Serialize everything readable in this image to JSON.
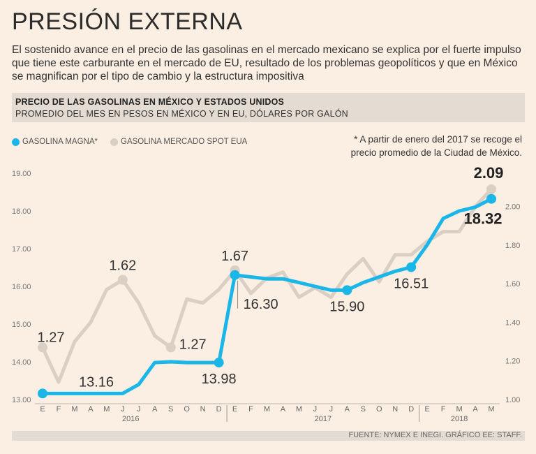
{
  "header": {
    "title": "PRESIÓN EXTERNA",
    "subtitle": "El sostenido avance en el precio de las gasolinas en el mercado mexicano se explica por el fuerte impulso que tiene este carburante en el mercado de EU, resultado de los problemas geopolíticos y que en México se magnifican por el tipo de cambio y la estructura impositiva"
  },
  "band": {
    "title": "PRECIO DE LAS GASOLINAS EN MÉXICO Y ESTADOS UNIDOS",
    "subtitle": "PROMEDIO DEL MES EN PESOS EN MÉXICO Y EN EU, DÓLARES POR GALÓN"
  },
  "note": "* A partir de enero del 2017 se recoge el precio promedio de la Ciudad de México.",
  "footer": "FUENTE: NYMEX E INEGI. GRÁFICO EE: STAFF.",
  "colors": {
    "magna": "#1ab6e8",
    "spot": "#d9cfc4",
    "background": "#fbeee2",
    "band": "#e4dcd2"
  },
  "chart_data": {
    "type": "line",
    "x": [
      "E",
      "F",
      "M",
      "A",
      "M",
      "J",
      "J",
      "A",
      "S",
      "O",
      "N",
      "D",
      "E",
      "F",
      "M",
      "A",
      "M",
      "J",
      "J",
      "A",
      "S",
      "O",
      "N",
      "D",
      "E",
      "F",
      "M",
      "A",
      "M"
    ],
    "year_labels": [
      "2016",
      "2017",
      "2018"
    ],
    "series": [
      {
        "name": "GASOLINA MAGNA*",
        "axis": "left",
        "values": [
          13.16,
          13.16,
          13.16,
          13.16,
          13.16,
          13.16,
          13.4,
          13.98,
          14.0,
          13.98,
          13.98,
          13.98,
          16.3,
          16.25,
          16.2,
          16.2,
          16.1,
          16.0,
          15.9,
          15.9,
          16.1,
          16.25,
          16.4,
          16.51,
          17.1,
          17.8,
          18.0,
          18.1,
          18.32
        ]
      },
      {
        "name": "GASOLINA MERCADO SPOT EUA",
        "axis": "right",
        "values": [
          1.27,
          1.09,
          1.3,
          1.4,
          1.57,
          1.62,
          1.5,
          1.33,
          1.27,
          1.52,
          1.5,
          1.57,
          1.67,
          1.55,
          1.63,
          1.66,
          1.53,
          1.58,
          1.53,
          1.65,
          1.73,
          1.61,
          1.75,
          1.75,
          1.82,
          1.87,
          1.87,
          2.0,
          2.09
        ]
      }
    ],
    "left_axis": {
      "ylim": [
        13,
        19
      ],
      "ticks": [
        "13.00",
        "14.00",
        "15.00",
        "16.00",
        "17.00",
        "18.00",
        "19.00"
      ]
    },
    "right_axis": {
      "ylim": [
        1.0,
        2.14
      ],
      "ticks": [
        "1.00",
        "1.20",
        "1.40",
        "1.60",
        "1.80",
        "2.00"
      ]
    },
    "annotations": [
      {
        "series": 1,
        "index": 0,
        "text": "1.27",
        "pos": "above"
      },
      {
        "series": 1,
        "index": 5,
        "text": "1.62",
        "pos": "above"
      },
      {
        "series": 1,
        "index": 8,
        "text": "1.27",
        "pos": "right"
      },
      {
        "series": 1,
        "index": 12,
        "text": "1.67",
        "pos": "above"
      },
      {
        "series": 1,
        "index": 28,
        "text": "2.09",
        "pos": "above"
      },
      {
        "series": 0,
        "index": 0,
        "text": "13.16",
        "pos": "right"
      },
      {
        "series": 0,
        "index": 11,
        "text": "13.98",
        "pos": "below"
      },
      {
        "series": 0,
        "index": 12,
        "text": "16.30",
        "pos": "below-right"
      },
      {
        "series": 0,
        "index": 19,
        "text": "15.90",
        "pos": "below"
      },
      {
        "series": 0,
        "index": 23,
        "text": "16.51",
        "pos": "below"
      },
      {
        "series": 0,
        "index": 28,
        "text": "18.32",
        "pos": "below"
      }
    ]
  }
}
